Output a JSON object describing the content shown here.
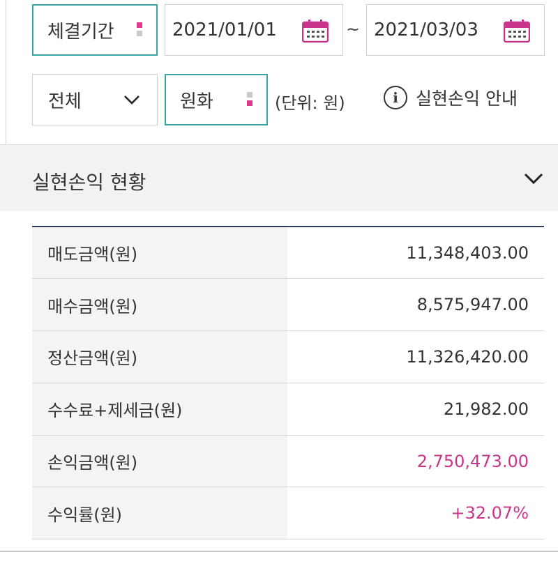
{
  "filter": {
    "period_label": "체결기간",
    "date_start": "2021/01/01",
    "date_separator": "~",
    "date_end": "2021/03/03",
    "type_select": "전체",
    "currency_select": "원화",
    "unit_text": "(단위: 원)",
    "info_label": "실현손익 안내",
    "calendar_icon": "calendar-icon",
    "accent_teal": "#3aa6a6",
    "accent_pink": "#e0388c"
  },
  "summary": {
    "title": "실현손익 현황",
    "rows": [
      {
        "label": "매도금액(원)",
        "value": "11,348,403.00",
        "highlight": false
      },
      {
        "label": "매수금액(원)",
        "value": "8,575,947.00",
        "highlight": false
      },
      {
        "label": "정산금액(원)",
        "value": "11,326,420.00",
        "highlight": false
      },
      {
        "label": "수수료+제세금(원)",
        "value": "21,982.00",
        "highlight": false
      },
      {
        "label": "손익금액(원)",
        "value": "2,750,473.00",
        "highlight": true
      },
      {
        "label": "수익률(원)",
        "value": "+32.07%",
        "highlight": true
      }
    ]
  }
}
